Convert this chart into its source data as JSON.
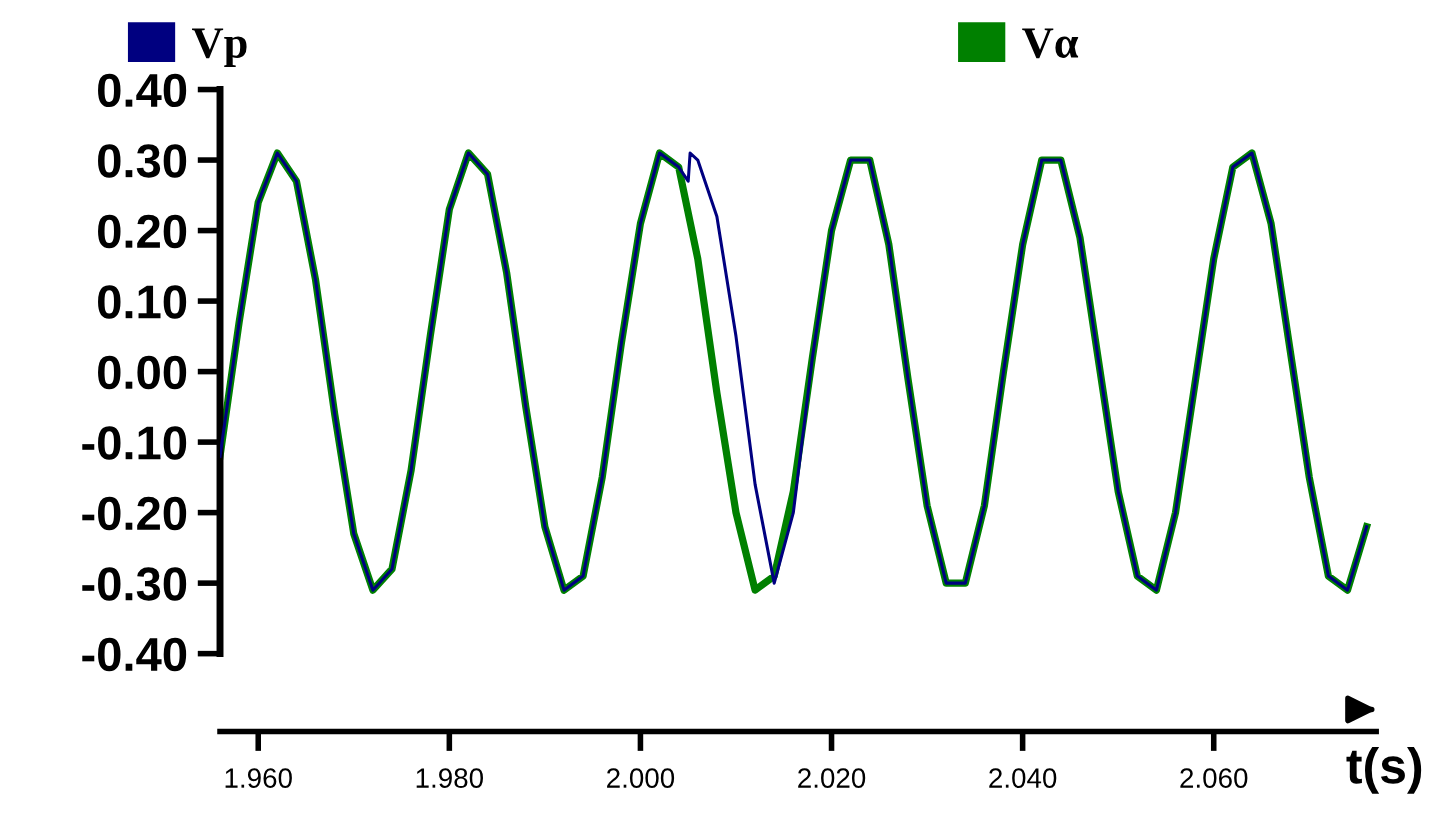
{
  "chart_data": {
    "type": "line",
    "xlabel": "t(s)",
    "xlim": [
      1.956,
      2.077
    ],
    "xticks": [
      {
        "value": 1.96,
        "label": "1.960"
      },
      {
        "value": 1.98,
        "label": "1.980"
      },
      {
        "value": 2.0,
        "label": "2.000"
      },
      {
        "value": 2.02,
        "label": "2.020"
      },
      {
        "value": 2.04,
        "label": "2.040"
      },
      {
        "value": 2.06,
        "label": "2.060"
      }
    ],
    "ylim": [
      -0.4,
      0.4
    ],
    "yticks": [
      {
        "value": -0.4,
        "label": "-0.40"
      },
      {
        "value": -0.3,
        "label": "-0.30"
      },
      {
        "value": -0.2,
        "label": "-0.20"
      },
      {
        "value": -0.1,
        "label": "-0.10"
      },
      {
        "value": 0,
        "label": "0.00"
      },
      {
        "value": 0.1,
        "label": "0.10"
      },
      {
        "value": 0.2,
        "label": "0.20"
      },
      {
        "value": 0.3,
        "label": "0.30"
      },
      {
        "value": 0.4,
        "label": "0.40"
      }
    ],
    "grid": false,
    "legend": "top",
    "marker": "none",
    "line_style": "solid",
    "series": [
      {
        "name": "Vp",
        "color": "#000080",
        "x": [
          1.956,
          1.958,
          1.96,
          1.962,
          1.964,
          1.966,
          1.968,
          1.97,
          1.972,
          1.974,
          1.976,
          1.978,
          1.98,
          1.982,
          1.984,
          1.986,
          1.988,
          1.99,
          1.992,
          1.994,
          1.996,
          1.998,
          2.0,
          2.002,
          2.004,
          2.005,
          2.0052,
          2.006,
          2.008,
          2.01,
          2.012,
          2.014,
          2.016,
          2.018,
          2.02,
          2.022,
          2.024,
          2.026,
          2.028,
          2.03,
          2.032,
          2.034,
          2.036,
          2.038,
          2.04,
          2.042,
          2.044,
          2.046,
          2.048,
          2.05,
          2.052,
          2.054,
          2.056,
          2.058,
          2.06,
          2.062,
          2.064,
          2.066,
          2.068,
          2.07,
          2.072,
          2.074,
          2.076
        ],
        "values": [
          -0.12,
          0.07,
          0.24,
          0.31,
          0.27,
          0.13,
          -0.06,
          -0.23,
          -0.31,
          -0.28,
          -0.14,
          0.05,
          0.23,
          0.31,
          0.28,
          0.14,
          -0.05,
          -0.22,
          -0.31,
          -0.29,
          -0.15,
          0.04,
          0.21,
          0.31,
          0.29,
          0.27,
          0.31,
          0.3,
          0.22,
          0.05,
          -0.16,
          -0.3,
          -0.2,
          0.02,
          0.2,
          0.3,
          0.3,
          0.18,
          -0.01,
          -0.19,
          -0.3,
          -0.3,
          -0.19,
          0.0,
          0.18,
          0.3,
          0.3,
          0.19,
          0.01,
          -0.17,
          -0.29,
          -0.31,
          -0.2,
          -0.02,
          0.16,
          0.29,
          0.31,
          0.21,
          0.03,
          -0.15,
          -0.29,
          -0.31,
          -0.22
        ]
      },
      {
        "name": "Vα",
        "color": "#008000",
        "x": [
          1.956,
          1.958,
          1.96,
          1.962,
          1.964,
          1.966,
          1.968,
          1.97,
          1.972,
          1.974,
          1.976,
          1.978,
          1.98,
          1.982,
          1.984,
          1.986,
          1.988,
          1.99,
          1.992,
          1.994,
          1.996,
          1.998,
          2.0,
          2.002,
          2.004,
          2.006,
          2.008,
          2.01,
          2.012,
          2.014,
          2.016,
          2.018,
          2.02,
          2.022,
          2.024,
          2.026,
          2.028,
          2.03,
          2.032,
          2.034,
          2.036,
          2.038,
          2.04,
          2.042,
          2.044,
          2.046,
          2.048,
          2.05,
          2.052,
          2.054,
          2.056,
          2.058,
          2.06,
          2.062,
          2.064,
          2.066,
          2.068,
          2.07,
          2.072,
          2.074,
          2.076
        ],
        "values": [
          -0.12,
          0.07,
          0.24,
          0.31,
          0.27,
          0.13,
          -0.06,
          -0.23,
          -0.31,
          -0.28,
          -0.14,
          0.05,
          0.23,
          0.31,
          0.28,
          0.14,
          -0.05,
          -0.22,
          -0.31,
          -0.29,
          -0.15,
          0.04,
          0.21,
          0.31,
          0.29,
          0.16,
          -0.03,
          -0.2,
          -0.31,
          -0.29,
          -0.17,
          0.02,
          0.2,
          0.3,
          0.3,
          0.18,
          -0.01,
          -0.19,
          -0.3,
          -0.3,
          -0.19,
          0.0,
          0.18,
          0.3,
          0.3,
          0.19,
          0.01,
          -0.17,
          -0.29,
          -0.31,
          -0.2,
          -0.02,
          0.16,
          0.29,
          0.31,
          0.21,
          0.03,
          -0.15,
          -0.29,
          -0.31,
          -0.22
        ]
      }
    ]
  }
}
